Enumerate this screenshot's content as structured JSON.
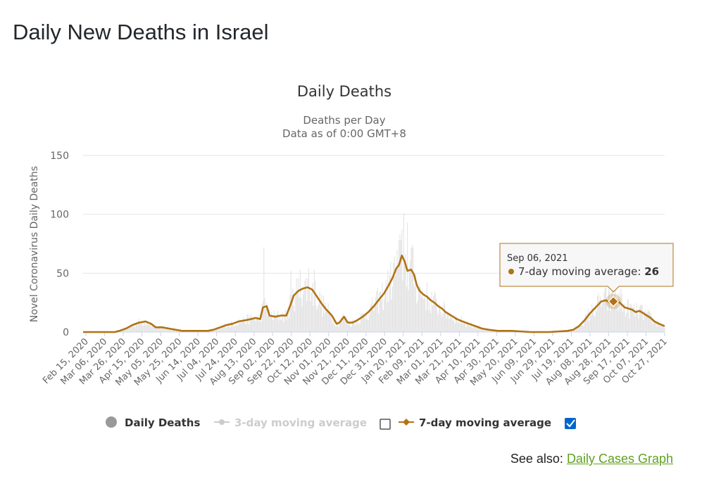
{
  "page": {
    "title": "Daily New Deaths in Israel",
    "see_also_label": "See also:",
    "see_also_link": "Daily Cases Graph"
  },
  "chart_data": {
    "type": "line",
    "title": "Daily Deaths",
    "subtitle_line1": "Deaths per Day",
    "subtitle_line2": "Data as of 0:00 GMT+8",
    "xlabel": "",
    "ylabel": "Novel Coronavirus Daily Deaths",
    "ylim": [
      0,
      150
    ],
    "yticks": [
      0,
      50,
      100,
      150
    ],
    "xlim": [
      "2020-02-15",
      "2021-10-31"
    ],
    "x_tick_labels": [
      "Feb 15, 2020",
      "Mar 06, 2020",
      "Mar 26, 2020",
      "Apr 15, 2020",
      "May 05, 2020",
      "May 25, 2020",
      "Jun 14, 2020",
      "Jul 04, 2020",
      "Jul 24, 2020",
      "Aug 13, 2020",
      "Sep 02, 2020",
      "Sep 22, 2020",
      "Oct 12, 2020",
      "Nov 01, 2020",
      "Nov 21, 2020",
      "Dec 11, 2020",
      "Dec 31, 2020",
      "Jan 20, 2021",
      "Feb 09, 2021",
      "Mar 01, 2021",
      "Mar 21, 2021",
      "Apr 10, 2021",
      "Apr 30, 2021",
      "May 20, 2021",
      "Jun 09, 2021",
      "Jun 29, 2021",
      "Jul 19, 2021",
      "Aug 08, 2021",
      "Aug 28, 2021",
      "Sep 17, 2021",
      "Oct 07, 2021",
      "Oct 27, 2021"
    ],
    "grid": true,
    "legend_position": "bottom",
    "series": [
      {
        "name": "Daily Deaths",
        "color": "#e6e6e6",
        "legend_color": "#999999",
        "visible": true
      },
      {
        "name": "3-day moving average",
        "color": "#cccccc",
        "visible": false
      },
      {
        "name": "7-day moving average",
        "color": "#b07315",
        "visible": true
      }
    ],
    "line_series_name": "7-day moving average",
    "line_points": [
      [
        "2020-02-15",
        0
      ],
      [
        "2020-03-20",
        0
      ],
      [
        "2020-03-25",
        1
      ],
      [
        "2020-04-01",
        3
      ],
      [
        "2020-04-08",
        6
      ],
      [
        "2020-04-15",
        8
      ],
      [
        "2020-04-22",
        9
      ],
      [
        "2020-04-28",
        7
      ],
      [
        "2020-05-03",
        4
      ],
      [
        "2020-05-10",
        4
      ],
      [
        "2020-05-17",
        3
      ],
      [
        "2020-05-24",
        2
      ],
      [
        "2020-05-31",
        1
      ],
      [
        "2020-06-07",
        1
      ],
      [
        "2020-06-14",
        1
      ],
      [
        "2020-06-21",
        1
      ],
      [
        "2020-06-28",
        1
      ],
      [
        "2020-07-04",
        2
      ],
      [
        "2020-07-11",
        4
      ],
      [
        "2020-07-18",
        6
      ],
      [
        "2020-07-24",
        7
      ],
      [
        "2020-07-31",
        9
      ],
      [
        "2020-08-07",
        10
      ],
      [
        "2020-08-13",
        11
      ],
      [
        "2020-08-18",
        12
      ],
      [
        "2020-08-23",
        11
      ],
      [
        "2020-08-26",
        21
      ],
      [
        "2020-08-30",
        22
      ],
      [
        "2020-09-02",
        14
      ],
      [
        "2020-09-08",
        13
      ],
      [
        "2020-09-14",
        14
      ],
      [
        "2020-09-20",
        14
      ],
      [
        "2020-09-24",
        22
      ],
      [
        "2020-09-28",
        31
      ],
      [
        "2020-10-03",
        35
      ],
      [
        "2020-10-08",
        37
      ],
      [
        "2020-10-13",
        38
      ],
      [
        "2020-10-18",
        36
      ],
      [
        "2020-10-23",
        30
      ],
      [
        "2020-10-28",
        24
      ],
      [
        "2020-11-02",
        19
      ],
      [
        "2020-11-08",
        14
      ],
      [
        "2020-11-13",
        7
      ],
      [
        "2020-11-16",
        8
      ],
      [
        "2020-11-21",
        13
      ],
      [
        "2020-11-25",
        8
      ],
      [
        "2020-11-30",
        8
      ],
      [
        "2020-12-05",
        10
      ],
      [
        "2020-12-11",
        13
      ],
      [
        "2020-12-17",
        17
      ],
      [
        "2020-12-23",
        22
      ],
      [
        "2020-12-29",
        28
      ],
      [
        "2021-01-03",
        33
      ],
      [
        "2021-01-08",
        40
      ],
      [
        "2021-01-12",
        46
      ],
      [
        "2021-01-16",
        54
      ],
      [
        "2021-01-19",
        57
      ],
      [
        "2021-01-22",
        65
      ],
      [
        "2021-01-25",
        60
      ],
      [
        "2021-01-28",
        52
      ],
      [
        "2021-02-01",
        53
      ],
      [
        "2021-02-04",
        49
      ],
      [
        "2021-02-07",
        40
      ],
      [
        "2021-02-10",
        35
      ],
      [
        "2021-02-14",
        32
      ],
      [
        "2021-02-18",
        30
      ],
      [
        "2021-02-22",
        27
      ],
      [
        "2021-02-26",
        25
      ],
      [
        "2021-03-02",
        22
      ],
      [
        "2021-03-06",
        20
      ],
      [
        "2021-03-10",
        17
      ],
      [
        "2021-03-14",
        15
      ],
      [
        "2021-03-18",
        13
      ],
      [
        "2021-03-22",
        11
      ],
      [
        "2021-03-28",
        9
      ],
      [
        "2021-04-04",
        7
      ],
      [
        "2021-04-11",
        5
      ],
      [
        "2021-04-18",
        3
      ],
      [
        "2021-04-25",
        2
      ],
      [
        "2021-05-05",
        1
      ],
      [
        "2021-05-20",
        1
      ],
      [
        "2021-06-09",
        0
      ],
      [
        "2021-06-29",
        0
      ],
      [
        "2021-07-19",
        1
      ],
      [
        "2021-07-25",
        2
      ],
      [
        "2021-07-31",
        5
      ],
      [
        "2021-08-06",
        10
      ],
      [
        "2021-08-12",
        16
      ],
      [
        "2021-08-18",
        21
      ],
      [
        "2021-08-24",
        26
      ],
      [
        "2021-08-29",
        27
      ],
      [
        "2021-09-02",
        25
      ],
      [
        "2021-09-06",
        26
      ],
      [
        "2021-09-10",
        27
      ],
      [
        "2021-09-14",
        24
      ],
      [
        "2021-09-18",
        21
      ],
      [
        "2021-09-22",
        20
      ],
      [
        "2021-09-26",
        19
      ],
      [
        "2021-09-30",
        17
      ],
      [
        "2021-10-04",
        18
      ],
      [
        "2021-10-08",
        16
      ],
      [
        "2021-10-12",
        14
      ],
      [
        "2021-10-16",
        12
      ],
      [
        "2021-10-20",
        9
      ],
      [
        "2021-10-25",
        7
      ],
      [
        "2021-10-31",
        5
      ]
    ],
    "bar_spikes": [
      [
        "2020-08-27",
        72
      ],
      [
        "2020-09-25",
        52
      ],
      [
        "2020-10-05",
        53
      ],
      [
        "2020-10-14",
        54
      ],
      [
        "2020-10-20",
        53
      ],
      [
        "2021-01-19",
        78
      ],
      [
        "2021-01-24",
        101
      ],
      [
        "2021-01-28",
        93
      ],
      [
        "2021-02-03",
        72
      ],
      [
        "2021-09-01",
        37
      ],
      [
        "2021-09-08",
        37
      ],
      [
        "2021-09-14",
        37
      ]
    ],
    "tooltip": {
      "date": "Sep 06, 2021",
      "x": "2021-09-06",
      "series_name": "7-day moving average",
      "value": 26
    },
    "legend": {
      "daily_deaths": "Daily Deaths",
      "avg3": "3-day moving average",
      "avg7": "7-day moving average",
      "avg3_checked": false,
      "avg7_checked": true
    }
  }
}
